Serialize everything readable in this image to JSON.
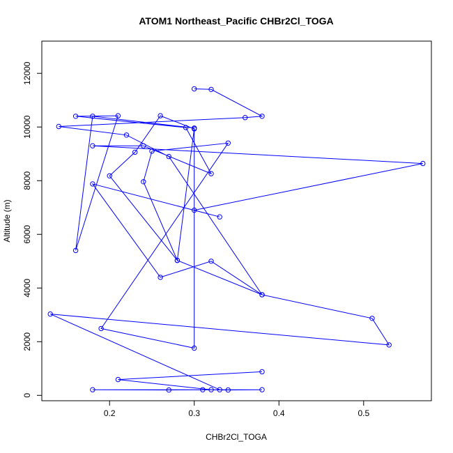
{
  "chart_data": {
    "type": "line",
    "title": "ATOM1 Northeast_Pacific CHBr2Cl_TOGA",
    "xlabel": "CHBr2Cl_TOGA",
    "ylabel": "Altitude (m)",
    "xlim": [
      0.12,
      0.58
    ],
    "ylim": [
      -200,
      13200
    ],
    "x_ticks": [
      0.2,
      0.3,
      0.4,
      0.5
    ],
    "x_tick_labels": [
      "0.2",
      "0.3",
      "0.4",
      "0.5"
    ],
    "y_ticks": [
      0,
      2000,
      4000,
      6000,
      8000,
      10000,
      12000
    ],
    "y_tick_labels": [
      "0",
      "2000",
      "4000",
      "6000",
      "8000",
      "10000",
      "12000"
    ],
    "grid": false,
    "color": "#0000ff",
    "series": [
      {
        "x": [
          0.3,
          0.32,
          0.38,
          0.36,
          0.14,
          0.22,
          0.27,
          0.38,
          0.32,
          0.26,
          0.18,
          0.33,
          0.3,
          0.57,
          0.18,
          0.24,
          0.32,
          0.29,
          0.16,
          0.21,
          0.16,
          0.18,
          0.3,
          0.3,
          0.19,
          0.34,
          0.25,
          0.24,
          0.28,
          0.3,
          0.26,
          0.23,
          0.2,
          0.28,
          0.38,
          0.51,
          0.53,
          0.13,
          0.33,
          0.31,
          0.34,
          0.38,
          0.18,
          0.27,
          0.32,
          0.21,
          0.38
        ]
      },
      {
        "y": [
          11420,
          11400,
          10400,
          10350,
          10020,
          9700,
          8900,
          3750,
          5000,
          4400,
          7880,
          6650,
          6900,
          8640,
          9300,
          9300,
          8260,
          9980,
          10400,
          10420,
          5400,
          10400,
          9960,
          1760,
          2490,
          9400,
          9100,
          7960,
          5030,
          9930,
          10420,
          9060,
          8180,
          5030,
          3750,
          2870,
          1880,
          3030,
          210,
          210,
          200,
          210,
          210,
          200,
          210,
          590,
          880
        ]
      }
    ]
  }
}
